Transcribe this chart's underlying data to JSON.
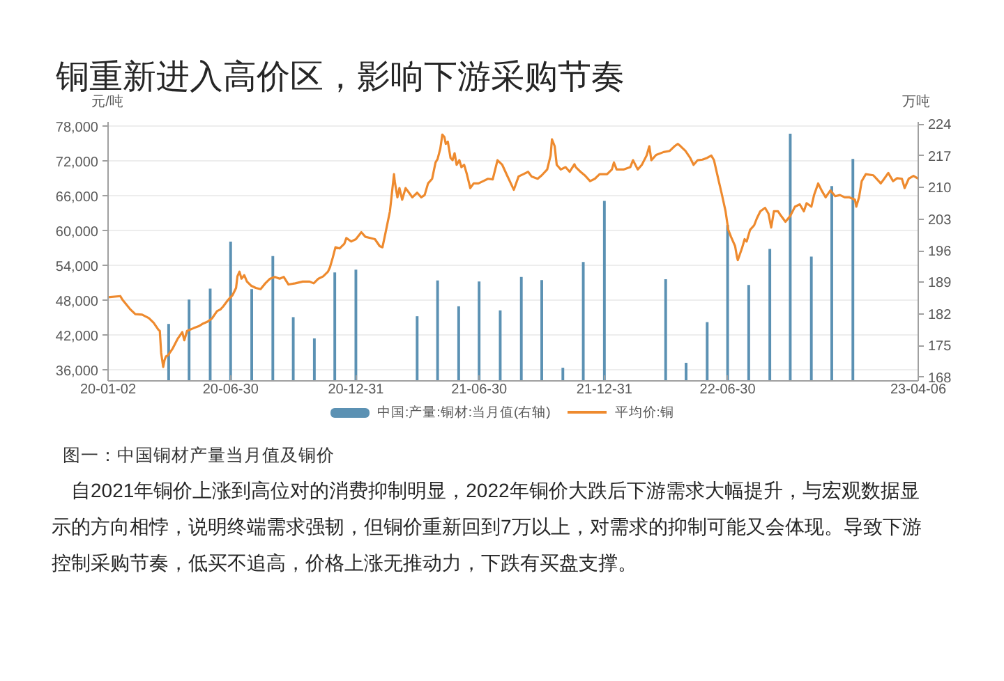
{
  "chart_data": {
    "type": "bar",
    "title": "铜重新进入高价区，影响下游采购节奏",
    "ylabel": "元/吨",
    "y2label": "万吨",
    "annotations": [
      "图一：中国铜材产量当月值及铜价",
      "自2021年铜价上涨到高位对的消费抑制明显，2022年铜价大跌后下游需求大幅提升，与宏观数据显示的方向相悖，说明终端需求强韧，但铜价重新回到7万以上，对需求的抑制可能又会体现。导致下游控制采购节奏，低买不追高，价格上涨无推动力，下跌有买盘支撑。"
    ],
    "xlim": [
      "2020-01-02",
      "2023-04-06"
    ],
    "xticks": [
      {
        "value": "2020-01-02",
        "label": "20-01-02"
      },
      {
        "value": "2020-06-30",
        "label": "20-06-30"
      },
      {
        "value": "2020-12-31",
        "label": "20-12-31"
      },
      {
        "value": "2021-06-30",
        "label": "21-06-30"
      },
      {
        "value": "2021-12-31",
        "label": "21-12-31"
      },
      {
        "value": "2022-06-30",
        "label": "22-06-30"
      },
      {
        "value": "2023-04-06",
        "label": "23-04-06"
      }
    ],
    "ylim": [
      34200,
      78800
    ],
    "yticks": [
      {
        "value": 36000,
        "label": "36,000"
      },
      {
        "value": 42000,
        "label": "42,000"
      },
      {
        "value": 48000,
        "label": "48,000"
      },
      {
        "value": 54000,
        "label": "54,000"
      },
      {
        "value": 60000,
        "label": "60,000"
      },
      {
        "value": 66000,
        "label": "66,000"
      },
      {
        "value": 72000,
        "label": "72,000"
      },
      {
        "value": 78000,
        "label": "78,000"
      }
    ],
    "y2lim": [
      167.2,
      224.5
    ],
    "y2ticks": [
      168,
      175,
      182,
      189,
      196,
      203,
      210,
      217,
      224
    ],
    "grid": "y",
    "legend": "bottom",
    "series": [
      {
        "name": "中国:产量:铜材:当月值(右轴)",
        "axis": "y2",
        "color": "#5b91b3",
        "x": [
          "2020-03-31",
          "2020-04-30",
          "2020-05-31",
          "2020-06-30",
          "2020-07-31",
          "2020-08-31",
          "2020-09-30",
          "2020-10-31",
          "2020-11-30",
          "2020-12-31",
          "2021-03-31",
          "2021-04-30",
          "2021-05-31",
          "2021-06-30",
          "2021-07-31",
          "2021-08-31",
          "2021-09-30",
          "2021-10-31",
          "2021-11-30",
          "2021-12-31",
          "2022-03-31",
          "2022-04-30",
          "2022-05-31",
          "2022-06-30",
          "2022-07-31",
          "2022-08-31",
          "2022-09-30",
          "2022-10-31",
          "2022-11-30",
          "2022-12-31"
        ],
        "values": [
          179.8,
          185.2,
          187.6,
          198.0,
          187.5,
          194.8,
          181.3,
          176.6,
          191.2,
          191.8,
          181.5,
          189.4,
          183.7,
          189.2,
          182.8,
          190.2,
          189.5,
          170.1,
          193.5,
          207.0,
          189.7,
          171.2,
          180.2,
          201.7,
          188.4,
          196.4,
          221.9,
          194.7,
          210.3,
          216.3
        ]
      },
      {
        "name": "平均价:铜",
        "type": "line",
        "color": "#ee8a2e",
        "x": [
          "2020-01-02",
          "2020-01-20",
          "2020-01-23",
          "2020-02-03",
          "2020-02-11",
          "2020-02-21",
          "2020-03-02",
          "2020-03-09",
          "2020-03-16",
          "2020-03-18",
          "2020-03-20",
          "2020-03-23",
          "2020-03-25",
          "2020-03-27",
          "2020-03-30",
          "2020-04-06",
          "2020-04-13",
          "2020-04-20",
          "2020-04-23",
          "2020-04-27",
          "2020-05-07",
          "2020-05-14",
          "2020-05-21",
          "2020-05-27",
          "2020-06-03",
          "2020-06-10",
          "2020-06-15",
          "2020-06-19",
          "2020-06-26",
          "2020-07-03",
          "2020-07-08",
          "2020-07-10",
          "2020-07-13",
          "2020-07-16",
          "2020-07-20",
          "2020-07-24",
          "2020-07-30",
          "2020-08-06",
          "2020-08-13",
          "2020-08-20",
          "2020-08-27",
          "2020-09-03",
          "2020-09-10",
          "2020-09-16",
          "2020-09-23",
          "2020-10-03",
          "2020-10-14",
          "2020-10-24",
          "2020-10-30",
          "2020-11-06",
          "2020-11-13",
          "2020-11-20",
          "2020-11-23",
          "2020-11-27",
          "2020-12-01",
          "2020-12-07",
          "2020-12-14",
          "2020-12-17",
          "2020-12-24",
          "2020-12-31",
          "2021-01-08",
          "2021-01-14",
          "2021-01-21",
          "2021-01-28",
          "2021-02-04",
          "2021-02-08",
          "2021-02-12",
          "2021-02-19",
          "2021-02-22",
          "2021-02-25",
          "2021-02-26",
          "2021-03-02",
          "2021-03-05",
          "2021-03-09",
          "2021-03-14",
          "2021-03-19",
          "2021-03-24",
          "2021-03-31",
          "2021-04-06",
          "2021-04-11",
          "2021-04-16",
          "2021-04-22",
          "2021-04-27",
          "2021-04-30",
          "2021-05-04",
          "2021-05-07",
          "2021-05-10",
          "2021-05-12",
          "2021-05-15",
          "2021-05-19",
          "2021-05-22",
          "2021-05-25",
          "2021-05-28",
          "2021-06-01",
          "2021-06-04",
          "2021-06-08",
          "2021-06-12",
          "2021-06-17",
          "2021-06-22",
          "2021-06-29",
          "2021-07-06",
          "2021-07-13",
          "2021-07-20",
          "2021-07-27",
          "2021-08-03",
          "2021-08-10",
          "2021-08-20",
          "2021-08-27",
          "2021-09-03",
          "2021-09-10",
          "2021-09-15",
          "2021-09-24",
          "2021-09-30",
          "2021-10-08",
          "2021-10-13",
          "2021-10-15",
          "2021-10-19",
          "2021-10-22",
          "2021-10-28",
          "2021-11-04",
          "2021-11-10",
          "2021-11-17",
          "2021-11-19",
          "2021-11-26",
          "2021-12-03",
          "2021-12-10",
          "2021-12-17",
          "2021-12-24",
          "2022-01-04",
          "2022-01-11",
          "2022-01-14",
          "2022-01-18",
          "2022-01-28",
          "2022-02-07",
          "2022-02-11",
          "2022-02-18",
          "2022-02-24",
          "2022-03-03",
          "2022-03-07",
          "2022-03-10",
          "2022-03-17",
          "2022-03-28",
          "2022-04-06",
          "2022-04-13",
          "2022-04-18",
          "2022-04-22",
          "2022-04-29",
          "2022-05-06",
          "2022-05-11",
          "2022-05-17",
          "2022-05-24",
          "2022-05-31",
          "2022-06-06",
          "2022-06-10",
          "2022-06-17",
          "2022-06-21",
          "2022-06-27",
          "2022-07-01",
          "2022-07-05",
          "2022-07-11",
          "2022-07-14",
          "2022-07-15",
          "2022-07-21",
          "2022-07-25",
          "2022-07-28",
          "2022-08-02",
          "2022-08-08",
          "2022-08-12",
          "2022-08-17",
          "2022-08-24",
          "2022-08-29",
          "2022-09-02",
          "2022-09-06",
          "2022-09-12",
          "2022-09-16",
          "2022-09-23",
          "2022-09-30",
          "2022-10-07",
          "2022-10-14",
          "2022-10-20",
          "2022-10-24",
          "2022-10-31",
          "2022-11-04",
          "2022-11-10",
          "2022-11-15",
          "2022-11-21",
          "2022-11-28",
          "2022-12-05",
          "2022-12-12",
          "2022-12-19",
          "2022-12-26",
          "2023-01-03",
          "2023-01-05",
          "2023-01-09",
          "2023-01-13",
          "2023-01-19",
          "2023-01-30",
          "2023-02-03",
          "2023-02-10",
          "2023-02-15",
          "2023-02-21",
          "2023-02-28",
          "2023-03-06",
          "2023-03-13",
          "2023-03-17",
          "2023-03-23",
          "2023-03-30",
          "2023-04-06"
        ],
        "values": [
          48600,
          48800,
          48200,
          46600,
          45700,
          45600,
          45000,
          44200,
          43000,
          42800,
          39000,
          36600,
          37800,
          38400,
          38600,
          39800,
          41400,
          42600,
          41200,
          42800,
          43300,
          43600,
          44100,
          44400,
          45000,
          46200,
          46500,
          47000,
          48100,
          49000,
          50200,
          52200,
          53000,
          51800,
          52400,
          51300,
          50600,
          50200,
          50000,
          51000,
          51800,
          52100,
          51800,
          52100,
          50800,
          51000,
          51300,
          51300,
          51000,
          51800,
          52200,
          53000,
          53800,
          55400,
          57200,
          57000,
          57800,
          58800,
          58200,
          58600,
          59800,
          59000,
          58800,
          58600,
          57400,
          57200,
          59400,
          63400,
          66600,
          69800,
          68600,
          65800,
          67400,
          65400,
          67400,
          66600,
          65800,
          66600,
          65800,
          66200,
          68200,
          69000,
          71800,
          72400,
          74200,
          76600,
          76200,
          75000,
          75400,
          72600,
          72200,
          73400,
          71400,
          72200,
          71000,
          71400,
          69800,
          67400,
          68200,
          68200,
          68600,
          69000,
          68900,
          72200,
          71400,
          69600,
          67100,
          69400,
          69800,
          70200,
          69400,
          69000,
          69600,
          70600,
          73000,
          75800,
          74600,
          71400,
          70600,
          71000,
          70200,
          71500,
          71000,
          70200,
          69500,
          68600,
          69000,
          69800,
          69800,
          70600,
          71800,
          70600,
          70600,
          71000,
          72200,
          70600,
          71400,
          73000,
          74600,
          72200,
          73100,
          73600,
          73800,
          74600,
          75000,
          74600,
          73800,
          72600,
          71400,
          72200,
          72300,
          72600,
          73000,
          72200,
          68600,
          66600,
          63400,
          60200,
          59000,
          57400,
          55400,
          55000,
          57000,
          58600,
          58200,
          60200,
          61000,
          62200,
          63400,
          64000,
          63000,
          60600,
          63400,
          63400,
          62700,
          61600,
          62600,
          64200,
          64600,
          63400,
          64800,
          64200,
          66200,
          68200,
          67000,
          65800,
          67000,
          66000,
          66200,
          65800,
          65800,
          65400,
          64200,
          65800,
          68600,
          69800,
          69600,
          69100,
          68200,
          69000,
          70000,
          68600,
          69100,
          69000,
          67400,
          69000,
          69500,
          69000
        ]
      }
    ]
  }
}
